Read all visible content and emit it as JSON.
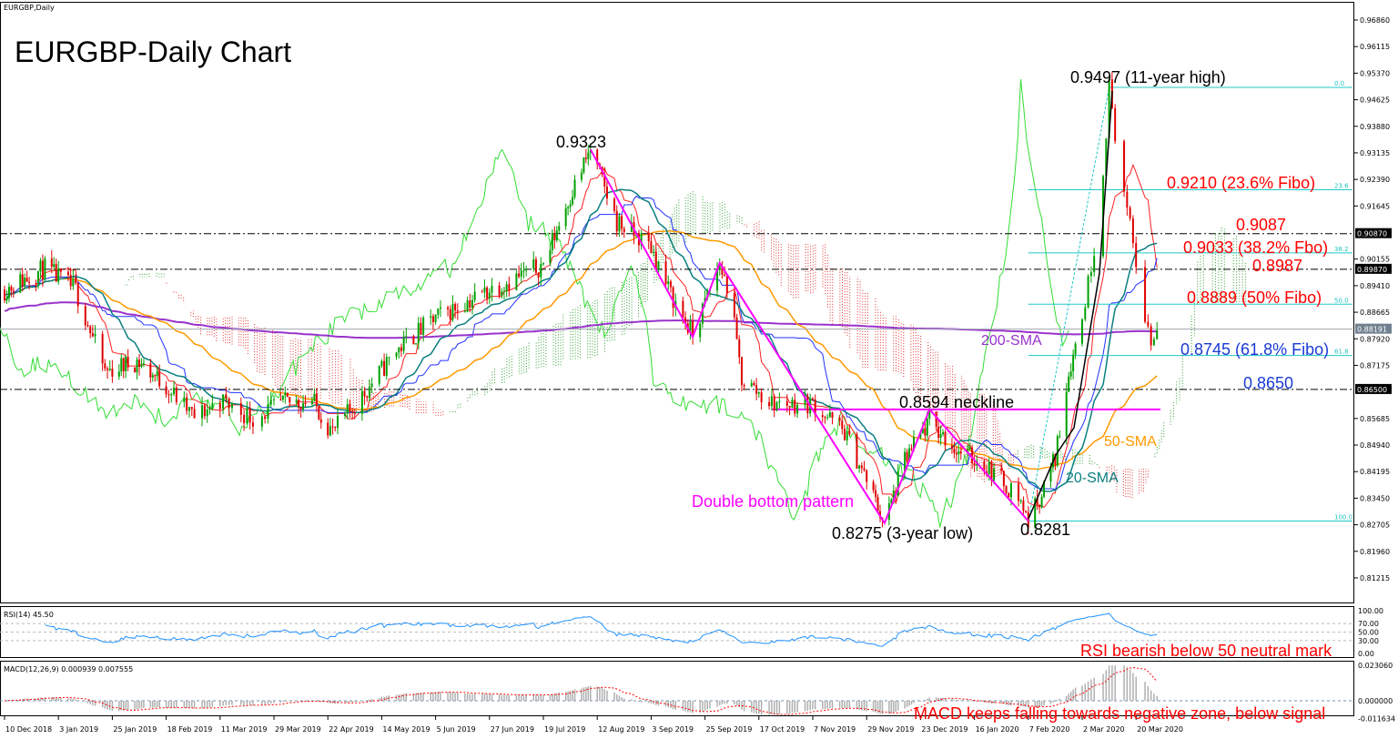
{
  "chart_data": {
    "type": "candlestick",
    "symbol_label": "EURGBP,Daily",
    "title": "EURGBP-Daily Chart",
    "price_axis": {
      "ticks": [
        "0.96860",
        "0.96115",
        "0.95370",
        "0.94625",
        "0.93880",
        "0.93135",
        "0.92390",
        "0.91645",
        "0.90155",
        "0.89410",
        "0.88665",
        "0.87920",
        "0.87175",
        "0.85685",
        "0.84940",
        "0.84195",
        "0.83450",
        "0.82705",
        "0.81960",
        "0.81215"
      ],
      "tick_values": [
        0.9686,
        0.96115,
        0.9537,
        0.94625,
        0.9388,
        0.93135,
        0.9239,
        0.91645,
        0.90155,
        0.8941,
        0.88665,
        0.8792,
        0.87175,
        0.85685,
        0.8494,
        0.84195,
        0.8345,
        0.82705,
        0.8196,
        0.81215
      ],
      "highlighted": [
        {
          "label": "0.90870",
          "value": 0.9087,
          "color": "#000000"
        },
        {
          "label": "0.89870",
          "value": 0.8987,
          "color": "#000000"
        },
        {
          "label": "0.88191",
          "value": 0.88191,
          "color": "#708090"
        },
        {
          "label": "0.86500",
          "value": 0.865,
          "color": "#000000"
        }
      ]
    },
    "x_ticks": [
      "10 Dec 2018",
      "3 Jan 2019",
      "25 Jan 2019",
      "18 Feb 2019",
      "11 Mar 2019",
      "29 Mar 2019",
      "22 Apr 2019",
      "14 May 2019",
      "5 Jun 2019",
      "27 Jun 2019",
      "19 Jul 2019",
      "12 Aug 2019",
      "3 Sep 2019",
      "25 Sep 2019",
      "17 Oct 2019",
      "7 Nov 2019",
      "29 Nov 2019",
      "23 Dec 2019",
      "16 Jan 2020",
      "7 Feb 2020",
      "2 Mar 2020",
      "20 Mar 2020"
    ],
    "closes": [
      {
        "date": "2018-12-10",
        "price": 0.893
      },
      {
        "date": "2018-12-28",
        "price": 0.899
      },
      {
        "date": "2019-01-10",
        "price": 0.893
      },
      {
        "date": "2019-01-22",
        "price": 0.87
      },
      {
        "date": "2019-02-05",
        "price": 0.873
      },
      {
        "date": "2019-02-18",
        "price": 0.866
      },
      {
        "date": "2019-03-01",
        "price": 0.857
      },
      {
        "date": "2019-03-11",
        "price": 0.862
      },
      {
        "date": "2019-03-22",
        "price": 0.857
      },
      {
        "date": "2019-04-01",
        "price": 0.861
      },
      {
        "date": "2019-04-15",
        "price": 0.862
      },
      {
        "date": "2019-04-24",
        "price": 0.853
      },
      {
        "date": "2019-05-07",
        "price": 0.864
      },
      {
        "date": "2019-05-20",
        "price": 0.876
      },
      {
        "date": "2019-06-05",
        "price": 0.885
      },
      {
        "date": "2019-06-27",
        "price": 0.893
      },
      {
        "date": "2019-07-10",
        "price": 0.897
      },
      {
        "date": "2019-07-19",
        "price": 0.9
      },
      {
        "date": "2019-07-30",
        "price": 0.918
      },
      {
        "date": "2019-08-09",
        "price": 0.9323
      },
      {
        "date": "2019-08-20",
        "price": 0.912
      },
      {
        "date": "2019-09-03",
        "price": 0.905
      },
      {
        "date": "2019-09-10",
        "price": 0.893
      },
      {
        "date": "2019-09-20",
        "price": 0.88
      },
      {
        "date": "2019-10-01",
        "price": 0.9
      },
      {
        "date": "2019-10-05",
        "price": 0.892
      },
      {
        "date": "2019-10-10",
        "price": 0.868
      },
      {
        "date": "2019-10-22",
        "price": 0.861
      },
      {
        "date": "2019-11-07",
        "price": 0.861
      },
      {
        "date": "2019-11-20",
        "price": 0.853
      },
      {
        "date": "2019-12-07",
        "price": 0.8275
      },
      {
        "date": "2019-12-16",
        "price": 0.845
      },
      {
        "date": "2019-12-27",
        "price": 0.856
      },
      {
        "date": "2020-01-08",
        "price": 0.848
      },
      {
        "date": "2020-01-20",
        "price": 0.844
      },
      {
        "date": "2020-02-03",
        "price": 0.835
      },
      {
        "date": "2020-02-07",
        "price": 0.8281
      },
      {
        "date": "2020-02-13",
        "price": 0.836
      },
      {
        "date": "2020-02-19",
        "price": 0.846
      },
      {
        "date": "2020-02-25",
        "price": 0.87
      },
      {
        "date": "2020-03-02",
        "price": 0.885
      },
      {
        "date": "2020-03-05",
        "price": 0.9
      },
      {
        "date": "2020-03-08",
        "price": 0.915
      },
      {
        "date": "2020-03-11",
        "price": 0.9497
      },
      {
        "date": "2020-03-15",
        "price": 0.925
      },
      {
        "date": "2020-03-19",
        "price": 0.905
      },
      {
        "date": "2020-03-22",
        "price": 0.89
      },
      {
        "date": "2020-03-25",
        "price": 0.878
      },
      {
        "date": "2020-03-27",
        "price": 0.882
      }
    ],
    "current_price": 0.88191,
    "horizontal_levels": [
      0.9087,
      0.8987,
      0.865
    ],
    "neckline": 0.8594,
    "fibonacci": [
      {
        "label": "0.0",
        "price": 0.9497
      },
      {
        "label": "23.6",
        "price": 0.921
      },
      {
        "label": "38.2",
        "price": 0.9033
      },
      {
        "label": "50.0",
        "price": 0.8889
      },
      {
        "label": "61.8",
        "price": 0.8745
      },
      {
        "label": "100.0",
        "price": 0.8281
      }
    ],
    "pattern_points": [
      {
        "date": "2019-08-09",
        "price": 0.9323
      },
      {
        "date": "2019-09-20",
        "price": 0.8797
      },
      {
        "date": "2019-10-01",
        "price": 0.9005
      },
      {
        "date": "2019-12-07",
        "price": 0.8275
      },
      {
        "date": "2019-12-27",
        "price": 0.8594
      },
      {
        "date": "2020-02-07",
        "price": 0.8281
      }
    ],
    "indicators": [
      "SMA 20",
      "SMA 50",
      "SMA 200",
      "Ichimoku"
    ],
    "rsi": {
      "label": "RSI(14) 45.50",
      "ticks": [
        "100.00",
        "70.00",
        "50.00",
        "30.00",
        "0.00"
      ],
      "levels": [
        100,
        70,
        50,
        30,
        0
      ]
    },
    "macd": {
      "label": "MACD(12,26,9) 0.000939 0.007555",
      "ticks": [
        "0.023060",
        "0.000000",
        "-0.011634"
      ],
      "values": [
        0.02306,
        0,
        -0.011634
      ]
    },
    "annotations": {
      "high": "0.9497 (11-year high)",
      "aug_high": "0.9323",
      "fib236": "0.9210 (23.6% Fibo)",
      "r9087": "0.9087",
      "fib382": "0.9033 (38.2% Fbo)",
      "r8987": "0.8987",
      "fib50": "0.8889 (50% Fibo)",
      "sma200": "200-SMA",
      "fib618": "0.8745 (61.8% Fibo)",
      "s8650": "0.8650",
      "neckline": "0.8594 neckline",
      "sma50": "50-SMA",
      "sma20": "20-SMA",
      "pattern": "Double bottom pattern",
      "low1": "0.8275 (3-year low)",
      "low2": "0.8281",
      "rsi_note": "RSI bearish below 50 neutral mark",
      "macd_note": "MACD keeps falling towards negative zone, below signal"
    },
    "colors": {
      "up": "#00a000",
      "down": "#e00000",
      "sma20": "#0a7f80",
      "sma50": "#ff9900",
      "sma200": "#9932cc",
      "fib": "#20c8c8",
      "pattern": "#ff00ff",
      "rsi": "#1e90ff",
      "macd_hist": "#b0b0b0",
      "macd_signal": "#ff0000"
    }
  }
}
